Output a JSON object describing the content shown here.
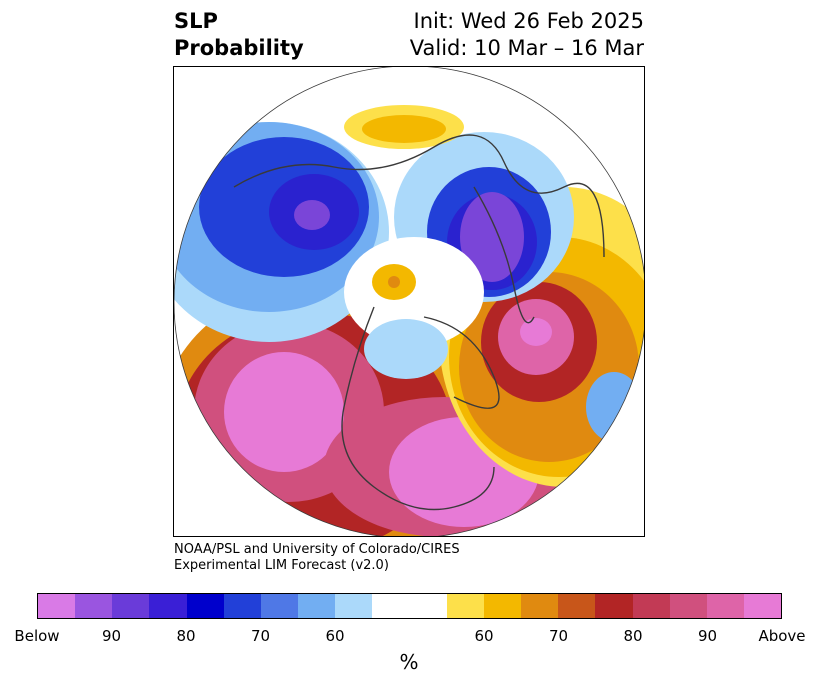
{
  "title": {
    "left_line1": "SLP",
    "left_line2": "Probability",
    "right_line1": "Init: Wed 26 Feb 2025",
    "right_line2": "Valid: 10 Mar – 16 Mar"
  },
  "credit": {
    "line1": "NOAA/PSL and University of Colorado/CIRES",
    "line2": "Experimental LIM Forecast (v2.0)"
  },
  "colorbar": {
    "unit": "%",
    "colors": [
      "#d97ae6",
      "#9a55e0",
      "#6a3bd9",
      "#3a1fd6",
      "#0000cc",
      "#2240d8",
      "#4f78e6",
      "#72aef2",
      "#abd9fa",
      "#ffffff",
      "#ffffff",
      "#fde04a",
      "#f3b800",
      "#e08a10",
      "#c8561a",
      "#b22525",
      "#c23a55",
      "#d0507e",
      "#de64a8",
      "#e77ad6"
    ],
    "tick_labels": [
      "Below",
      "90",
      "80",
      "70",
      "60",
      "60",
      "70",
      "80",
      "90",
      "Above"
    ],
    "tick_index": [
      0,
      2,
      4,
      6,
      8,
      12,
      14,
      16,
      18,
      20
    ]
  },
  "map": {
    "projection": "north polar stereographic",
    "colors": {
      "purple": "#7a45d8",
      "dark_blue": "#2a22cf",
      "blue": "#2240d8",
      "mid_blue": "#4f78e6",
      "light_blue": "#72aef2",
      "pale_blue": "#abd9fa",
      "yellow": "#fde04a",
      "gold": "#f3b800",
      "orange": "#e08a10",
      "rust": "#c8561a",
      "red": "#b22525",
      "crimson": "#c23a55",
      "rose": "#d0507e",
      "pink": "#de64a8",
      "light_pink": "#e77ad6",
      "coast": "#3a3a3a"
    }
  }
}
